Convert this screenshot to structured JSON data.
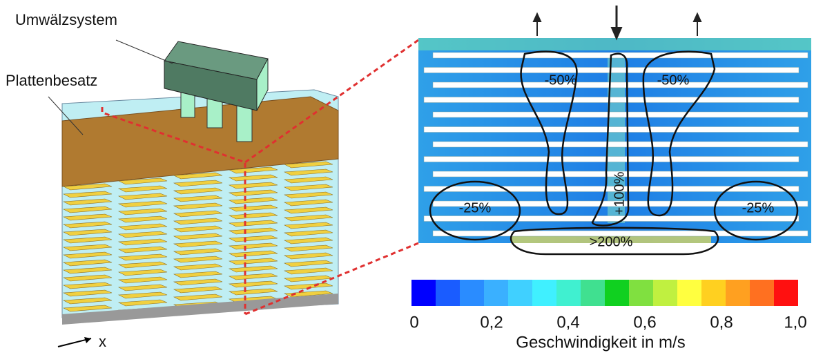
{
  "left": {
    "labels": [
      "Umwälzsystem",
      "Plattenbesatz"
    ],
    "axis": "x"
  },
  "field": {
    "regions": [
      "-50%",
      "-50%",
      "-25%",
      "-25%",
      "+100%",
      ">200%"
    ]
  },
  "colorbar": {
    "ticks": [
      "0",
      "0,2",
      "0,4",
      "0,6",
      "0,8",
      "1,0"
    ],
    "label": "Geschwindigkeit in m/s"
  }
}
